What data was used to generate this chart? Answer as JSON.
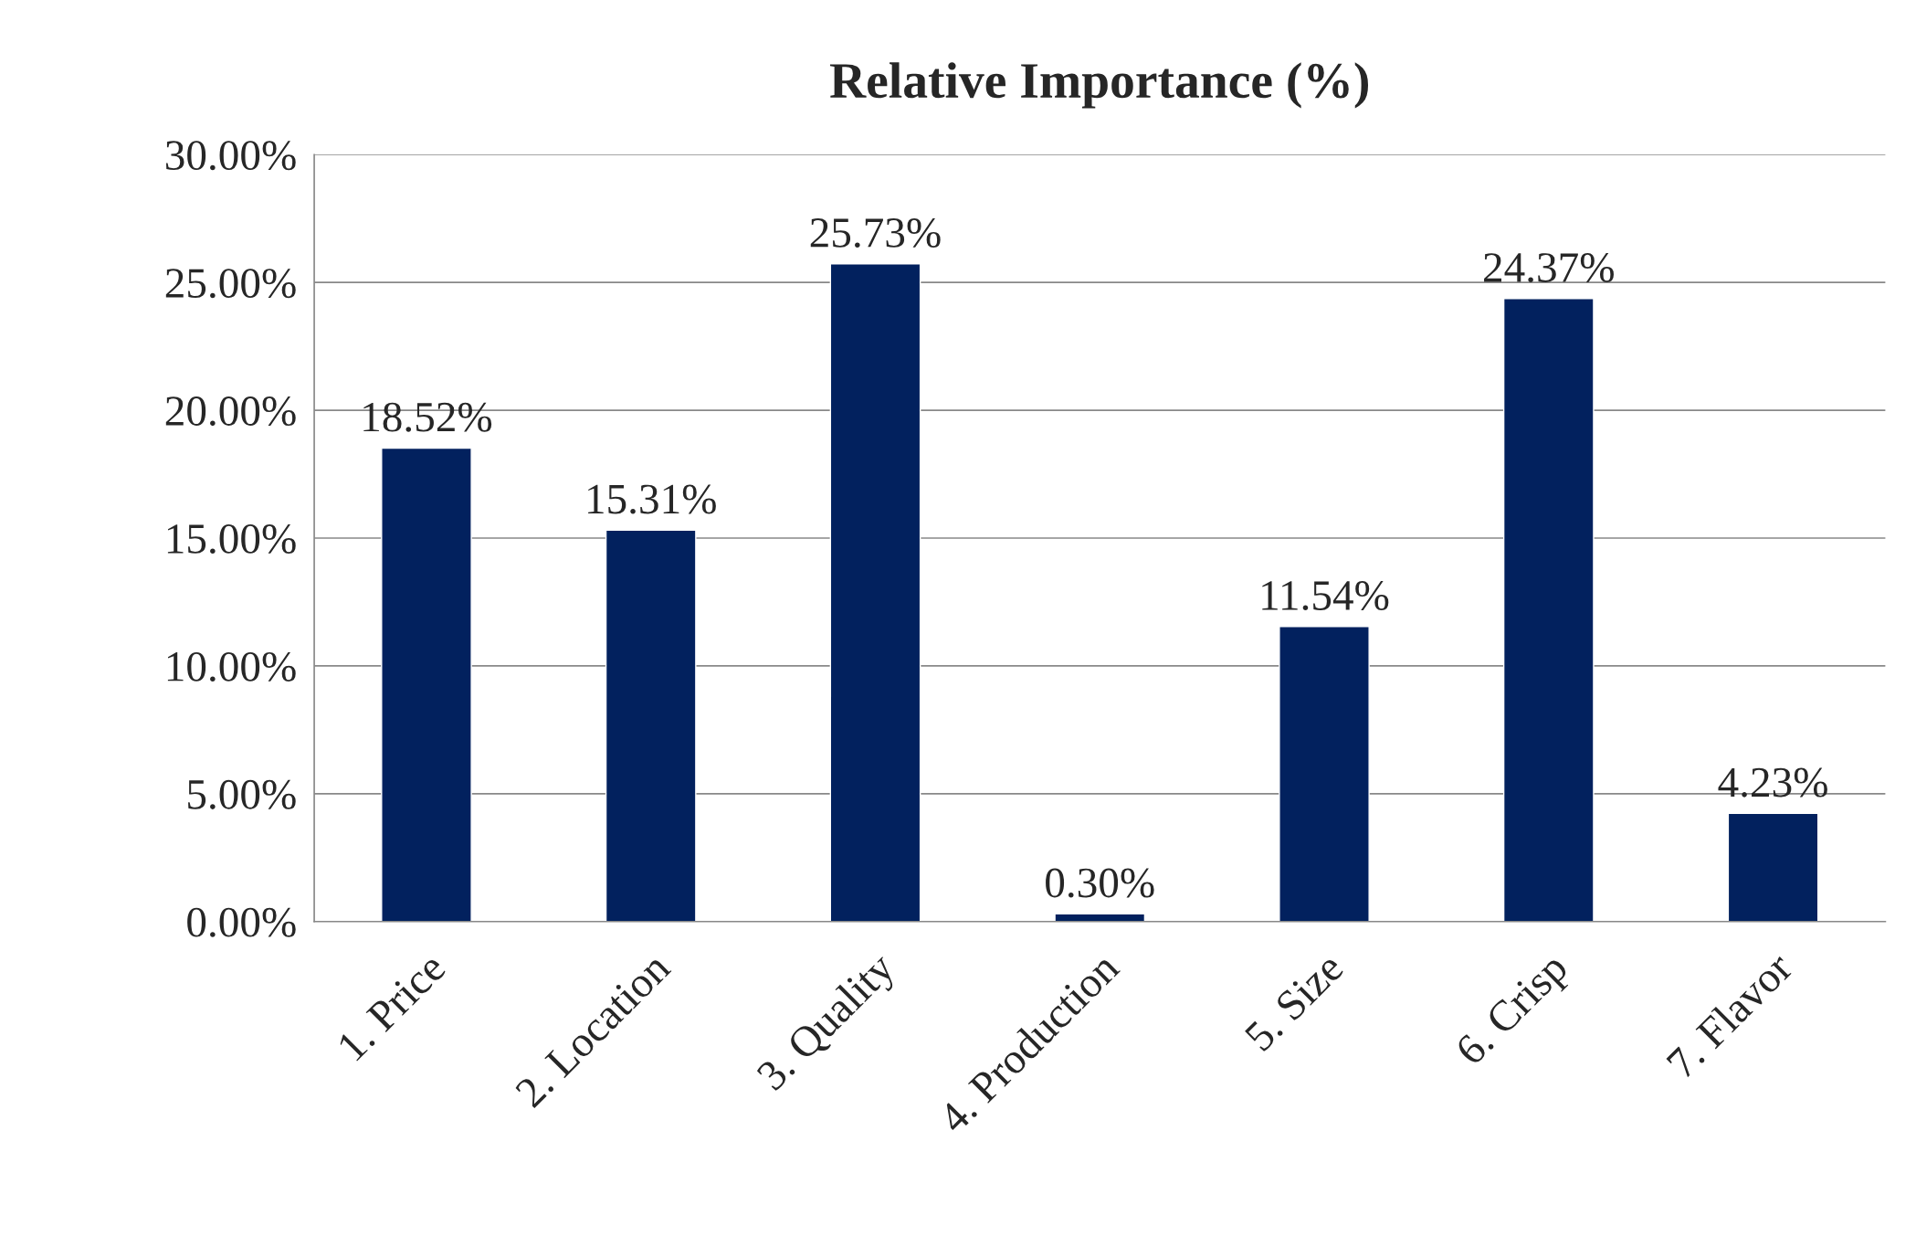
{
  "chart_data": {
    "type": "bar",
    "title": "Relative Importance (%)",
    "categories": [
      "1. Price",
      "2. Location",
      "3. Quality",
      "4. Production",
      "5. Size",
      "6. Crisp",
      "7. Flavor"
    ],
    "values": [
      18.52,
      15.31,
      25.73,
      0.3,
      11.54,
      24.37,
      4.23
    ],
    "value_labels": [
      "18.52%",
      "15.31%",
      "25.73%",
      "0.30%",
      "11.54%",
      "24.37%",
      "4.23%"
    ],
    "color": "#02215e",
    "ylim": [
      0,
      30
    ],
    "yticks": [
      {
        "value": 0,
        "label": "0.00%"
      },
      {
        "value": 5,
        "label": "5.00%"
      },
      {
        "value": 10,
        "label": "10.00%"
      },
      {
        "value": 15,
        "label": "15.00%"
      },
      {
        "value": 20,
        "label": "20.00%"
      },
      {
        "value": 25,
        "label": "25.00%"
      },
      {
        "value": 30,
        "label": "30.00%"
      }
    ],
    "grid": "y"
  }
}
